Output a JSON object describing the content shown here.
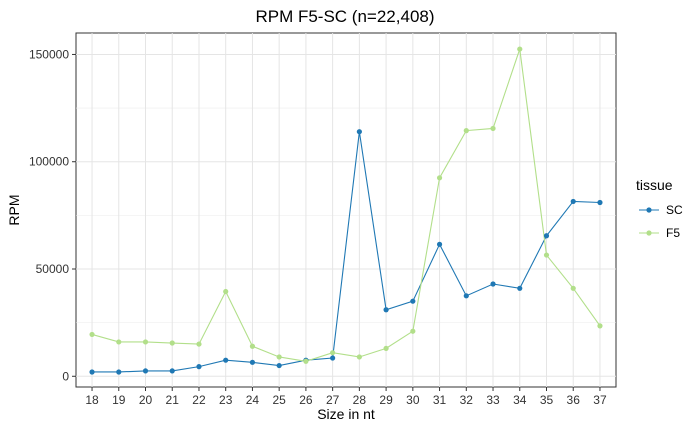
{
  "chart_data": {
    "type": "line",
    "title": "RPM F5-SC (n=22,408)",
    "xlabel": "Size in nt",
    "ylabel": "RPM",
    "x": [
      18,
      19,
      20,
      21,
      22,
      23,
      24,
      25,
      26,
      27,
      28,
      29,
      30,
      31,
      32,
      33,
      34,
      35,
      36,
      37
    ],
    "ylim": [
      -5000,
      160000
    ],
    "yticks": [
      0,
      50000,
      100000,
      150000
    ],
    "ytick_labels": [
      "0",
      "50000",
      "100000",
      "150000"
    ],
    "grid": true,
    "legend": {
      "title": "tissue",
      "position": "right"
    },
    "series": [
      {
        "name": "SC",
        "color": "#1f78b4",
        "values": [
          2000,
          2000,
          2500,
          2500,
          4500,
          7500,
          6500,
          5000,
          7500,
          8500,
          114000,
          31000,
          35000,
          61500,
          37500,
          43000,
          41000,
          65500,
          81500,
          81000
        ]
      },
      {
        "name": "F5",
        "color": "#b2df8a",
        "values": [
          19500,
          16000,
          16000,
          15500,
          15000,
          39500,
          14000,
          9000,
          7000,
          11000,
          9000,
          13000,
          21000,
          92500,
          114500,
          115500,
          152500,
          56500,
          41000,
          23500
        ]
      }
    ]
  }
}
